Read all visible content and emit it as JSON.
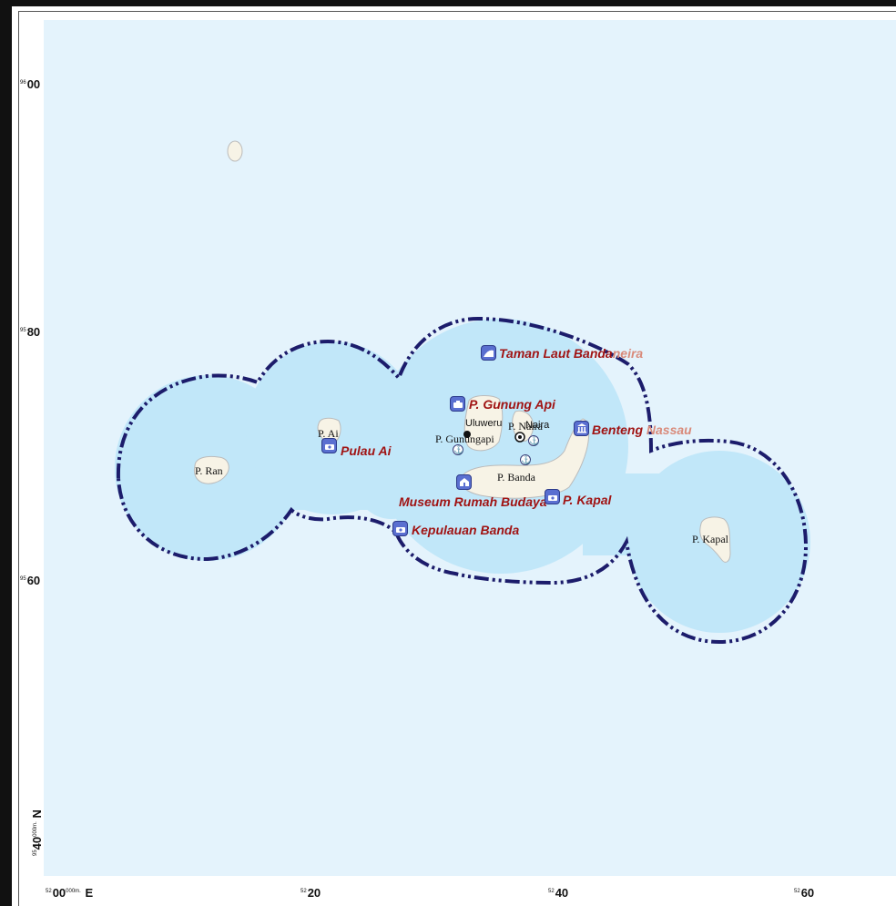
{
  "colors": {
    "sea": "#e4f3fc",
    "buffer": "#c1e7f9",
    "land": "#f7f3e6",
    "boundary": "#1c1c6b",
    "poi_text": "#a01414",
    "poi_icon": "#5a6fd0"
  },
  "grid": {
    "y_labels": [
      {
        "sup": "96",
        "main": "00"
      },
      {
        "sup": "95",
        "main": "80"
      },
      {
        "sup": "95",
        "main": "60"
      }
    ],
    "y_bottom": {
      "sup": "95",
      "main": "40",
      "sub": "000m.",
      "suffix": "N"
    },
    "x_first": {
      "sup": "52",
      "main": "00",
      "sub": "000m.",
      "suffix": "E"
    },
    "x_labels": [
      {
        "sup": "52",
        "main": "20"
      },
      {
        "sup": "52",
        "main": "40"
      },
      {
        "sup": "52",
        "main": "60"
      }
    ]
  },
  "islands": [
    {
      "name": "P. Ran"
    },
    {
      "name": "P. Ai"
    },
    {
      "name": "P. Gunungapi"
    },
    {
      "name": "P. Naira"
    },
    {
      "name": "P. Banda"
    },
    {
      "name": "P. Kapal"
    }
  ],
  "places": [
    {
      "name": "Uluweru"
    },
    {
      "name": "Naira"
    }
  ],
  "pois": [
    {
      "name_main": "Taman Laut Banda",
      "name_fade": "neira",
      "icon": "beach-icon"
    },
    {
      "name_main": "P. Gunung Api",
      "name_fade": "",
      "icon": "volcano-icon"
    },
    {
      "name_main": "Benteng ",
      "name_fade": "Nassau",
      "icon": "fort-icon"
    },
    {
      "name_main": "Pulau Ai",
      "name_fade": "",
      "icon": "island-icon"
    },
    {
      "name_main": "Museum Rumah Budaya",
      "name_fade": "",
      "icon": "museum-icon"
    },
    {
      "name_main": "P. Kapal",
      "name_fade": "",
      "icon": "island-icon"
    },
    {
      "name_main": "Kepulauan Banda",
      "name_fade": "",
      "icon": "island-icon"
    }
  ]
}
